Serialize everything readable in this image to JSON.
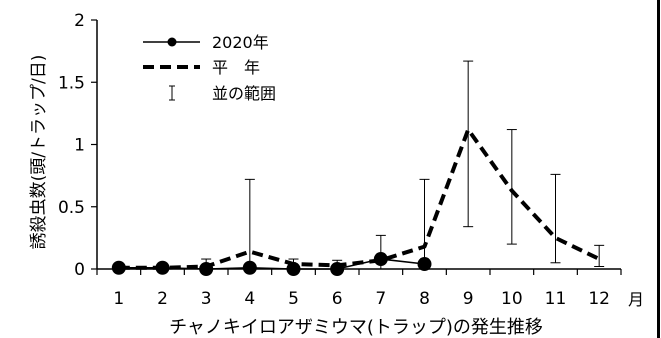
{
  "chart_data": {
    "type": "line",
    "title": "",
    "xlabel": "チャノキイロアザミウマ(トラップ)の発生推移",
    "ylabel": "誘殺虫数(頭/トラップ/日)",
    "x_unit": "月",
    "categories": [
      "1",
      "2",
      "3",
      "4",
      "5",
      "6",
      "7",
      "8",
      "9",
      "10",
      "11",
      "12"
    ],
    "ylim": [
      0,
      2
    ],
    "yticks": [
      "0",
      "0.5",
      "1",
      "1.5",
      "2"
    ],
    "grid": false,
    "legend_position": "top-left",
    "series": [
      {
        "name": "2020年",
        "style": "solid-line-with-circle-markers",
        "color": "#000000",
        "values": [
          0.01,
          0.01,
          0.0,
          0.01,
          0.0,
          0.0,
          0.08,
          0.04,
          null,
          null,
          null,
          null
        ]
      },
      {
        "name": "平　年",
        "style": "dashed-line",
        "color": "#000000",
        "values": [
          0.01,
          0.01,
          0.02,
          0.14,
          0.04,
          0.03,
          0.07,
          0.18,
          1.12,
          0.63,
          0.25,
          0.08
        ]
      }
    ],
    "error_bars": {
      "name": "並の範囲",
      "lower": [
        0.0,
        0.0,
        0.0,
        0.0,
        0.0,
        0.0,
        0.0,
        0.0,
        0.34,
        0.2,
        0.05,
        0.02
      ],
      "upper": [
        0.03,
        0.03,
        0.08,
        0.72,
        0.08,
        0.07,
        0.27,
        0.72,
        1.67,
        1.12,
        0.76,
        0.19
      ]
    }
  }
}
